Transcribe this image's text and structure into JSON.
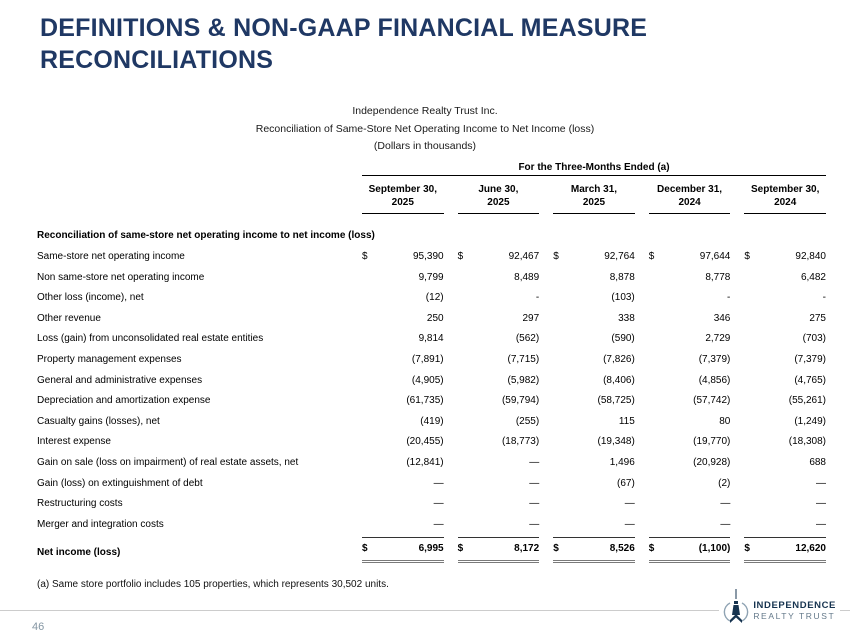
{
  "slide": {
    "title": "DEFINITIONS & NON-GAAP FINANCIAL MEASURE RECONCILIATIONS",
    "page_number": "46"
  },
  "table_header": {
    "company": "Independence Realty Trust Inc.",
    "subtitle": "Reconciliation of Same-Store Net Operating Income to Net Income (loss)",
    "units": "(Dollars in thousands)"
  },
  "table": {
    "span_header": "For the Three-Months Ended (a)",
    "dollar_sign": "$",
    "columns": [
      {
        "line1": "September 30,",
        "line2": "2025"
      },
      {
        "line1": "June 30,",
        "line2": "2025"
      },
      {
        "line1": "March 31,",
        "line2": "2025"
      },
      {
        "line1": "December 31,",
        "line2": "2024"
      },
      {
        "line1": "September 30,",
        "line2": "2024"
      }
    ],
    "section_header": "Reconciliation of same-store net operating income to net income (loss)",
    "rows": [
      {
        "label": "Same-store net operating income",
        "dollar": true,
        "values": [
          "95,390",
          "92,467",
          "92,764",
          "97,644",
          "92,840"
        ]
      },
      {
        "label": "Non same-store net operating income",
        "values": [
          "9,799",
          "8,489",
          "8,878",
          "8,778",
          "6,482"
        ]
      },
      {
        "label": "Other loss (income), net",
        "values": [
          "(12)",
          "-",
          "(103)",
          "-",
          "-"
        ]
      },
      {
        "label": "Other revenue",
        "values": [
          "250",
          "297",
          "338",
          "346",
          "275"
        ]
      },
      {
        "label": "Loss (gain) from unconsolidated real estate entities",
        "values": [
          "9,814",
          "(562)",
          "(590)",
          "2,729",
          "(703)"
        ]
      },
      {
        "label": "Property management expenses",
        "values": [
          "(7,891)",
          "(7,715)",
          "(7,826)",
          "(7,379)",
          "(7,379)"
        ]
      },
      {
        "label": "General and administrative expenses",
        "values": [
          "(4,905)",
          "(5,982)",
          "(8,406)",
          "(4,856)",
          "(4,765)"
        ]
      },
      {
        "label": "Depreciation and amortization expense",
        "values": [
          "(61,735)",
          "(59,794)",
          "(58,725)",
          "(57,742)",
          "(55,261)"
        ]
      },
      {
        "label": "Casualty gains (losses), net",
        "values": [
          "(419)",
          "(255)",
          "115",
          "80",
          "(1,249)"
        ]
      },
      {
        "label": "Interest expense",
        "values": [
          "(20,455)",
          "(18,773)",
          "(19,348)",
          "(19,770)",
          "(18,308)"
        ]
      },
      {
        "label": "Gain on sale (loss on impairment) of real estate assets, net",
        "values": [
          "(12,841)",
          "—",
          "1,496",
          "(20,928)",
          "688"
        ]
      },
      {
        "label": "Gain (loss) on extinguishment of debt",
        "values": [
          "—",
          "—",
          "(67)",
          "(2)",
          "—"
        ]
      },
      {
        "label": "Restructuring costs",
        "values": [
          "—",
          "—",
          "—",
          "—",
          "—"
        ]
      },
      {
        "label": "Merger and integration costs",
        "values": [
          "—",
          "—",
          "—",
          "—",
          "—"
        ]
      },
      {
        "label": "Net income (loss)",
        "dollar": true,
        "total": true,
        "values": [
          "6,995",
          "8,172",
          "8,526",
          "(1,100)",
          "12,620"
        ]
      }
    ],
    "footnote": "(a) Same store portfolio includes 105 properties, which represents 30,502 units."
  },
  "logo": {
    "line1": "INDEPENDENCE",
    "line2": "REALTY TRUST"
  },
  "colors": {
    "title_navy": "#1f3864",
    "logo_navy": "#16334f",
    "logo_gray_blue": "#64798a",
    "footer_line": "#cccccc"
  }
}
